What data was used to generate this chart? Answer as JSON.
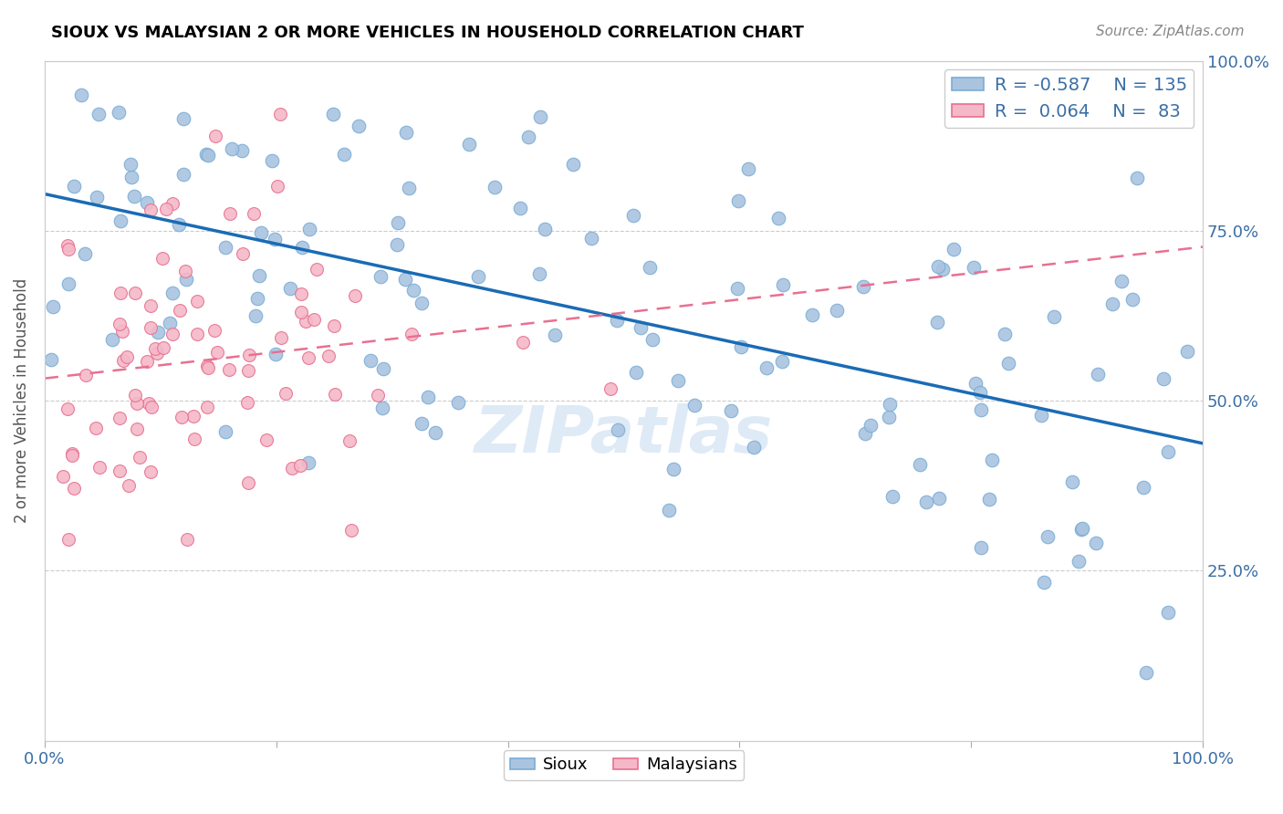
{
  "title": "SIOUX VS MALAYSIAN 2 OR MORE VEHICLES IN HOUSEHOLD CORRELATION CHART",
  "source": "Source: ZipAtlas.com",
  "ylabel": "2 or more Vehicles in Household",
  "ytick_labels": [
    "100.0%",
    "75.0%",
    "50.0%",
    "25.0%"
  ],
  "ytick_positions": [
    1.0,
    0.75,
    0.5,
    0.25
  ],
  "sioux_color": "#aac4e0",
  "sioux_edge": "#7aadd4",
  "malaysian_color": "#f4b8c8",
  "malaysian_edge": "#e87090",
  "trend_sioux_color": "#1a6bb5",
  "trend_malaysian_color": "#e87090",
  "legend_sioux_label": "Sioux",
  "legend_malaysian_label": "Malaysians",
  "R_sioux": -0.587,
  "N_sioux": 135,
  "R_malaysian": 0.064,
  "N_malaysian": 83,
  "watermark": "ZIPatlas",
  "sioux_seed": 42,
  "malaysian_seed": 7,
  "xlim": [
    0.0,
    1.0
  ],
  "ylim": [
    0.0,
    1.0
  ],
  "sioux_trend_x0": 0.83,
  "sioux_trend_x1": 0.44,
  "malaysian_trend_x0": 0.62,
  "malaysian_trend_x1": 0.75
}
